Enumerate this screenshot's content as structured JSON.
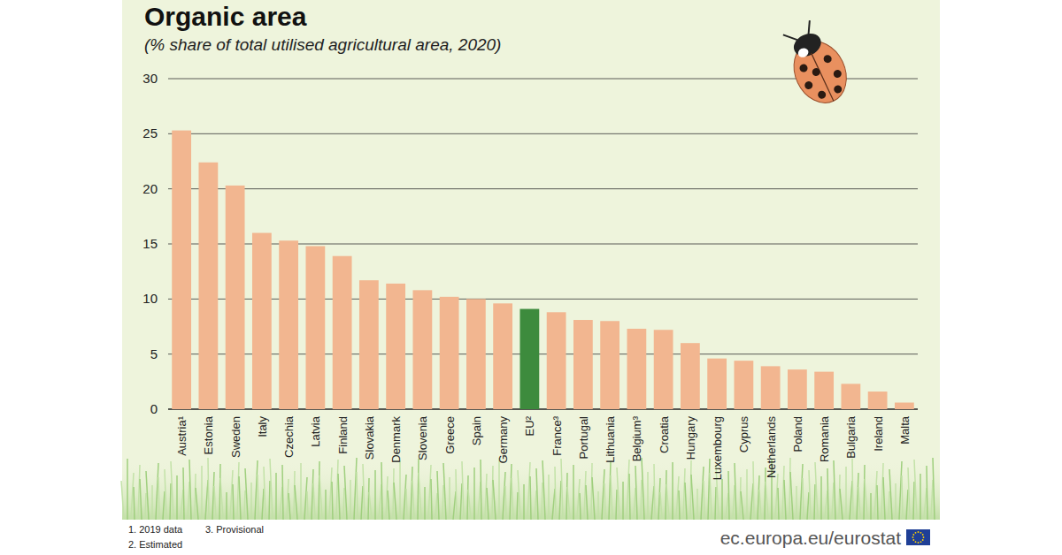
{
  "chart_data": {
    "type": "bar",
    "title": "Organic area",
    "subtitle": "(% share of total utilised agricultural area, 2020)",
    "categories": [
      "Austria¹",
      "Estonia",
      "Sweden",
      "Italy",
      "Czechia",
      "Latvia",
      "Finland",
      "Slovakia",
      "Denmark",
      "Slovenia",
      "Greece",
      "Spain",
      "Germany",
      "EU²",
      "France³",
      "Portugal",
      "Lithuania",
      "Belgium³",
      "Croatia",
      "Hungary",
      "Luxembourg",
      "Cyprus",
      "Netherlands",
      "Poland",
      "Romania",
      "Bulgaria",
      "Ireland",
      "Malta"
    ],
    "values": [
      25.3,
      22.4,
      20.3,
      16.0,
      15.3,
      14.8,
      13.9,
      11.7,
      11.4,
      10.8,
      10.2,
      10.0,
      9.6,
      9.1,
      8.8,
      8.1,
      8.0,
      7.3,
      7.2,
      6.0,
      4.6,
      4.4,
      3.9,
      3.6,
      3.4,
      2.3,
      1.6,
      0.6
    ],
    "colors": [
      "#f2b690",
      "#f2b690",
      "#f2b690",
      "#f2b690",
      "#f2b690",
      "#f2b690",
      "#f2b690",
      "#f2b690",
      "#f2b690",
      "#f2b690",
      "#f2b690",
      "#f2b690",
      "#f2b690",
      "#3d8b3d",
      "#f2b690",
      "#f2b690",
      "#f2b690",
      "#f2b690",
      "#f2b690",
      "#f2b690",
      "#f2b690",
      "#f2b690",
      "#f2b690",
      "#f2b690",
      "#f2b690",
      "#f2b690",
      "#f2b690",
      "#f2b690"
    ],
    "ylim": [
      0,
      30
    ],
    "yticks": [
      0,
      5,
      10,
      15,
      20,
      25,
      30
    ],
    "grid": true,
    "annotations": [
      "1. 2019 data",
      "2. Estimated",
      "3. Provisional"
    ],
    "source": "ec.europa.eu/eurostat"
  }
}
